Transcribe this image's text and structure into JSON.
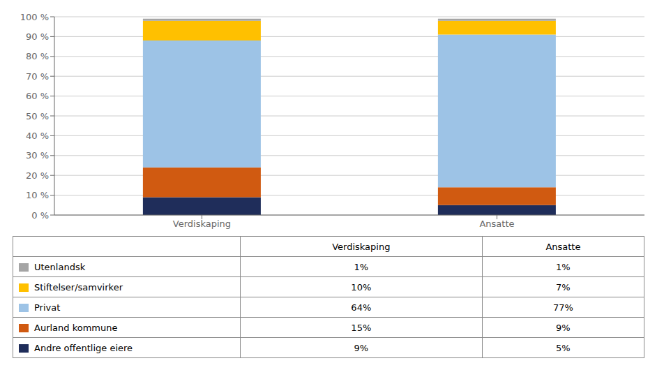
{
  "chart_data": {
    "type": "bar",
    "stacked": true,
    "grid": true,
    "legend": "bottom",
    "categories": [
      "Verdiskaping",
      "Ansatte"
    ],
    "series": [
      {
        "name": "Andre offentlige eiere",
        "color": "#1F2D5A",
        "values": [
          9,
          5
        ],
        "value_labels": [
          "9%",
          "5%"
        ]
      },
      {
        "name": "Aurland kommune",
        "color": "#D05A11",
        "values": [
          15,
          9
        ],
        "value_labels": [
          "15%",
          "9%"
        ]
      },
      {
        "name": "Privat",
        "color": "#9DC3E6",
        "values": [
          64,
          77
        ],
        "value_labels": [
          "64%",
          "77%"
        ]
      },
      {
        "name": "Stiftelser/samvirker",
        "color": "#FFC000",
        "values": [
          10,
          7
        ],
        "value_labels": [
          "10%",
          "7%"
        ]
      },
      {
        "name": "Utenlandsk",
        "color": "#A5A5A5",
        "values": [
          1,
          1
        ],
        "value_labels": [
          "1%",
          "1%"
        ]
      }
    ],
    "ylim": [
      0,
      100
    ],
    "yticks": [
      {
        "value": 0,
        "label": "0 %"
      },
      {
        "value": 10,
        "label": "10 %"
      },
      {
        "value": 20,
        "label": "20 %"
      },
      {
        "value": 30,
        "label": "30 %"
      },
      {
        "value": 40,
        "label": "40 %"
      },
      {
        "value": 50,
        "label": "50 %"
      },
      {
        "value": 60,
        "label": "60 %"
      },
      {
        "value": 70,
        "label": "70 %"
      },
      {
        "value": 80,
        "label": "80 %"
      },
      {
        "value": 90,
        "label": "90 %"
      },
      {
        "value": 100,
        "label": "100 %"
      }
    ]
  }
}
